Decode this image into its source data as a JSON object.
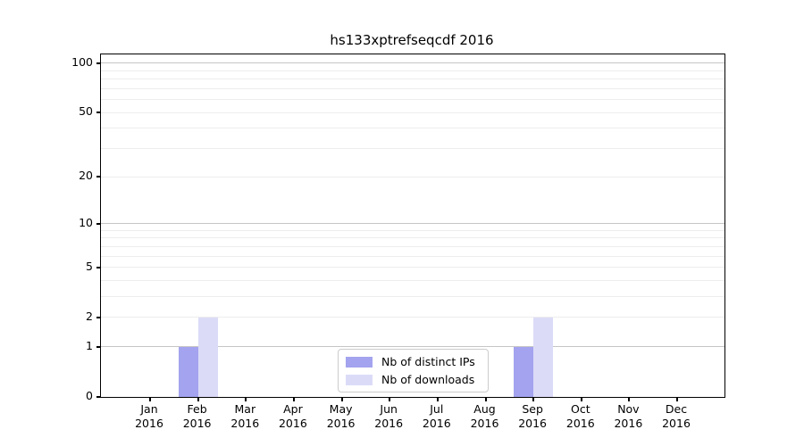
{
  "chart_data": {
    "type": "bar",
    "title": "hs133xptrefseqcdf 2016",
    "categories": [
      "Jan\n2016",
      "Feb\n2016",
      "Mar\n2016",
      "Apr\n2016",
      "May\n2016",
      "Jun\n2016",
      "Jul\n2016",
      "Aug\n2016",
      "Sep\n2016",
      "Oct\n2016",
      "Nov\n2016",
      "Dec\n2016"
    ],
    "series": [
      {
        "name": "Nb of distinct IPs",
        "color": "#a3a3ef",
        "values": [
          0,
          1,
          0,
          0,
          0,
          0,
          0,
          0,
          1,
          0,
          0,
          0
        ]
      },
      {
        "name": "Nb of downloads",
        "color": "#dbdbf8",
        "values": [
          0,
          2,
          0,
          0,
          0,
          0,
          0,
          0,
          2,
          0,
          0,
          0
        ]
      }
    ],
    "y_axis": {
      "scale": "log1p",
      "ticks": [
        0,
        1,
        2,
        5,
        10,
        20,
        50,
        100
      ],
      "top_value": 113,
      "major_gridlines": [
        1,
        10,
        100
      ],
      "minor_gridlines": [
        2,
        3,
        4,
        5,
        6,
        7,
        8,
        9,
        20,
        30,
        40,
        50,
        60,
        70,
        80,
        90
      ]
    },
    "x_axis": {
      "label": "",
      "tick_year": "2016"
    },
    "legend": {
      "position": "lower center",
      "entries": [
        "Nb of distinct IPs",
        "Nb of downloads"
      ]
    },
    "grid": "on",
    "colors": {
      "grid_major": "#c6c6c6",
      "grid_minor": "#ededed",
      "spine": "#000000",
      "background": "#ffffff"
    }
  }
}
